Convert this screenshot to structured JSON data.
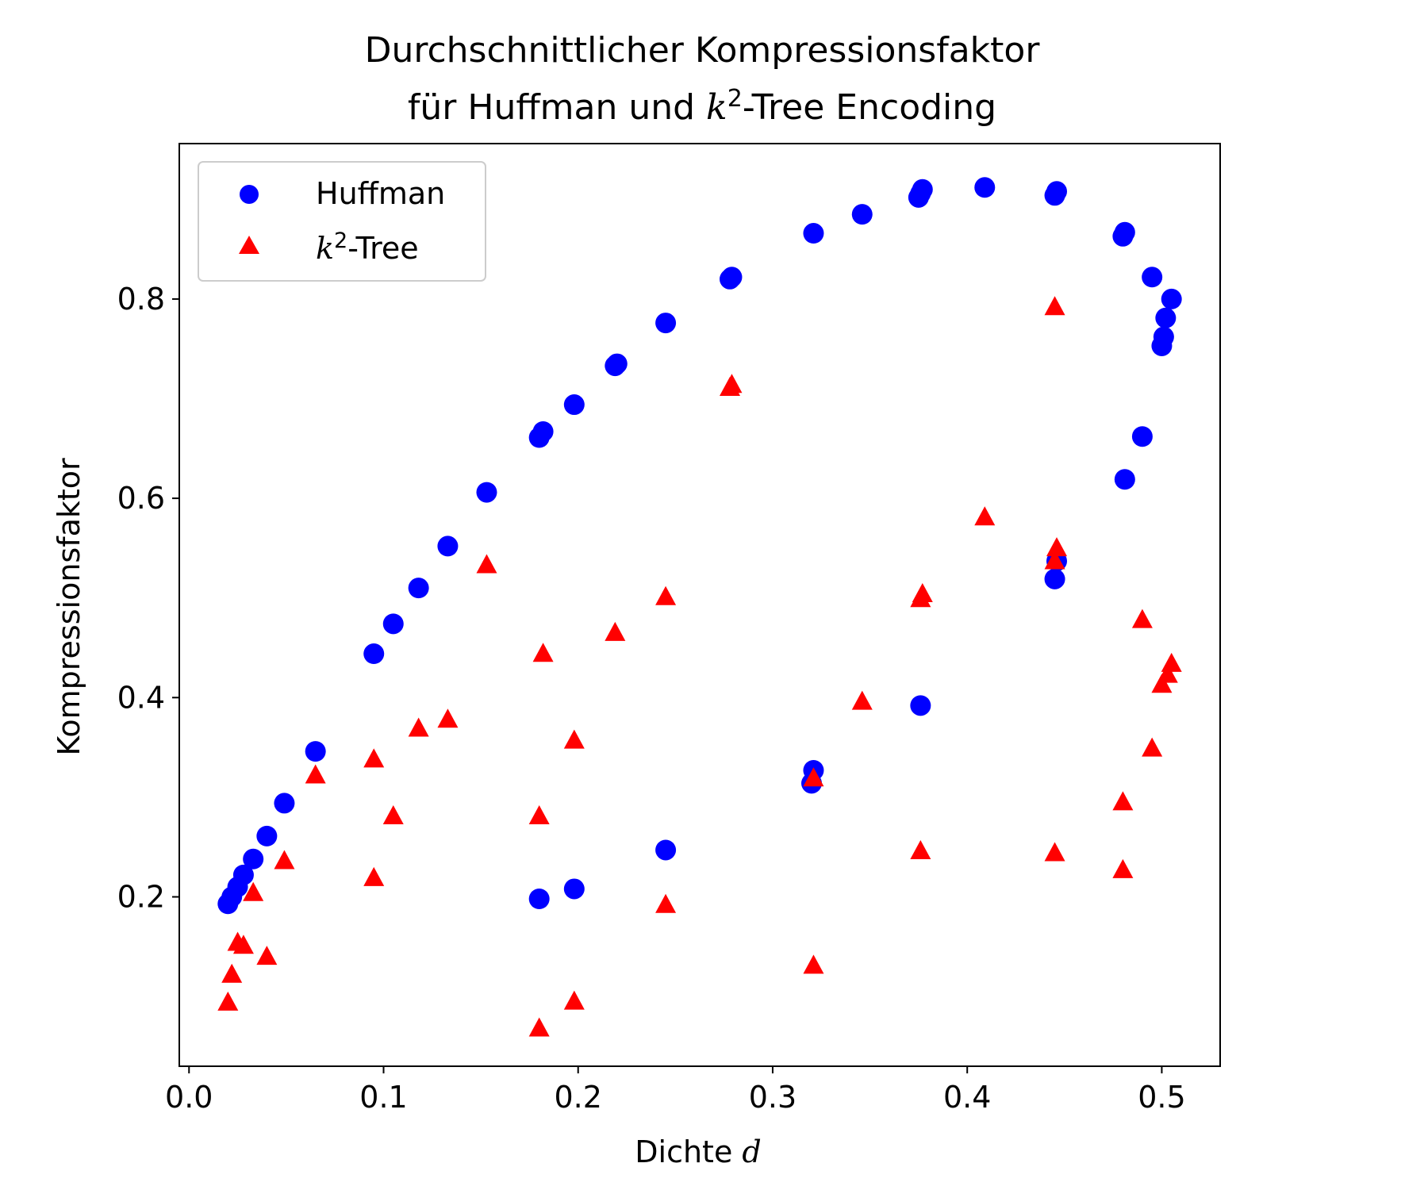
{
  "chart_data": {
    "type": "scatter",
    "title_line1": "Durchschnittlicher Kompressionsfaktor",
    "title_line2_pre": "für Huffman und ",
    "title_line2_k": "k",
    "title_line2_sup": "2",
    "title_line2_post": "-Tree Encoding",
    "xlabel": "Dichte ",
    "xlabel_var": "d",
    "ylabel": "Kompressionsfaktor",
    "xlim": [
      -0.005,
      0.53
    ],
    "ylim": [
      0.03,
      0.956
    ],
    "x_ticks": [
      "0.0",
      "0.1",
      "0.2",
      "0.3",
      "0.4",
      "0.5"
    ],
    "x_tick_values": [
      0.0,
      0.1,
      0.2,
      0.3,
      0.4,
      0.5
    ],
    "y_ticks": [
      "0.2",
      "0.4",
      "0.6",
      "0.8"
    ],
    "y_tick_values": [
      0.2,
      0.4,
      0.6,
      0.8
    ],
    "grid": false,
    "legend_position": "top-left",
    "series": [
      {
        "name": "Huffman",
        "marker": "circle",
        "color": "#0000ff",
        "points": [
          [
            0.02,
            0.193
          ],
          [
            0.022,
            0.2
          ],
          [
            0.025,
            0.21
          ],
          [
            0.028,
            0.222
          ],
          [
            0.033,
            0.238
          ],
          [
            0.04,
            0.261
          ],
          [
            0.049,
            0.294
          ],
          [
            0.065,
            0.346
          ],
          [
            0.095,
            0.444
          ],
          [
            0.105,
            0.474
          ],
          [
            0.118,
            0.51
          ],
          [
            0.133,
            0.552
          ],
          [
            0.153,
            0.606
          ],
          [
            0.18,
            0.661
          ],
          [
            0.182,
            0.667
          ],
          [
            0.198,
            0.694
          ],
          [
            0.219,
            0.733
          ],
          [
            0.22,
            0.735
          ],
          [
            0.245,
            0.776
          ],
          [
            0.278,
            0.82
          ],
          [
            0.279,
            0.822
          ],
          [
            0.321,
            0.866
          ],
          [
            0.346,
            0.885
          ],
          [
            0.375,
            0.902
          ],
          [
            0.376,
            0.906
          ],
          [
            0.377,
            0.91
          ],
          [
            0.409,
            0.912
          ],
          [
            0.445,
            0.904
          ],
          [
            0.446,
            0.908
          ],
          [
            0.48,
            0.863
          ],
          [
            0.481,
            0.867
          ],
          [
            0.495,
            0.822
          ],
          [
            0.505,
            0.8
          ],
          [
            0.502,
            0.781
          ],
          [
            0.501,
            0.762
          ],
          [
            0.5,
            0.753
          ],
          [
            0.49,
            0.662
          ],
          [
            0.481,
            0.619
          ],
          [
            0.445,
            0.519
          ],
          [
            0.446,
            0.537
          ],
          [
            0.376,
            0.392
          ],
          [
            0.321,
            0.327
          ],
          [
            0.32,
            0.314
          ],
          [
            0.245,
            0.247
          ],
          [
            0.198,
            0.208
          ],
          [
            0.18,
            0.198
          ]
        ]
      },
      {
        "name": "k²-Tree",
        "name_k": "k",
        "name_sup": "2",
        "name_post": "-Tree",
        "marker": "triangle",
        "color": "#ff0000",
        "points": [
          [
            0.02,
            0.093
          ],
          [
            0.022,
            0.121
          ],
          [
            0.025,
            0.153
          ],
          [
            0.028,
            0.15
          ],
          [
            0.033,
            0.203
          ],
          [
            0.04,
            0.139
          ],
          [
            0.049,
            0.235
          ],
          [
            0.065,
            0.321
          ],
          [
            0.095,
            0.337
          ],
          [
            0.095,
            0.218
          ],
          [
            0.105,
            0.28
          ],
          [
            0.118,
            0.368
          ],
          [
            0.133,
            0.377
          ],
          [
            0.153,
            0.532
          ],
          [
            0.18,
            0.28
          ],
          [
            0.182,
            0.443
          ],
          [
            0.18,
            0.067
          ],
          [
            0.198,
            0.356
          ],
          [
            0.198,
            0.094
          ],
          [
            0.219,
            0.464
          ],
          [
            0.245,
            0.5
          ],
          [
            0.245,
            0.191
          ],
          [
            0.278,
            0.71
          ],
          [
            0.279,
            0.713
          ],
          [
            0.321,
            0.318
          ],
          [
            0.321,
            0.13
          ],
          [
            0.346,
            0.395
          ],
          [
            0.376,
            0.498
          ],
          [
            0.377,
            0.503
          ],
          [
            0.376,
            0.245
          ],
          [
            0.409,
            0.58
          ],
          [
            0.445,
            0.791
          ],
          [
            0.446,
            0.549
          ],
          [
            0.445,
            0.536
          ],
          [
            0.445,
            0.243
          ],
          [
            0.48,
            0.294
          ],
          [
            0.48,
            0.226
          ],
          [
            0.49,
            0.477
          ],
          [
            0.495,
            0.348
          ],
          [
            0.5,
            0.412
          ],
          [
            0.503,
            0.422
          ],
          [
            0.505,
            0.433
          ]
        ]
      }
    ]
  }
}
